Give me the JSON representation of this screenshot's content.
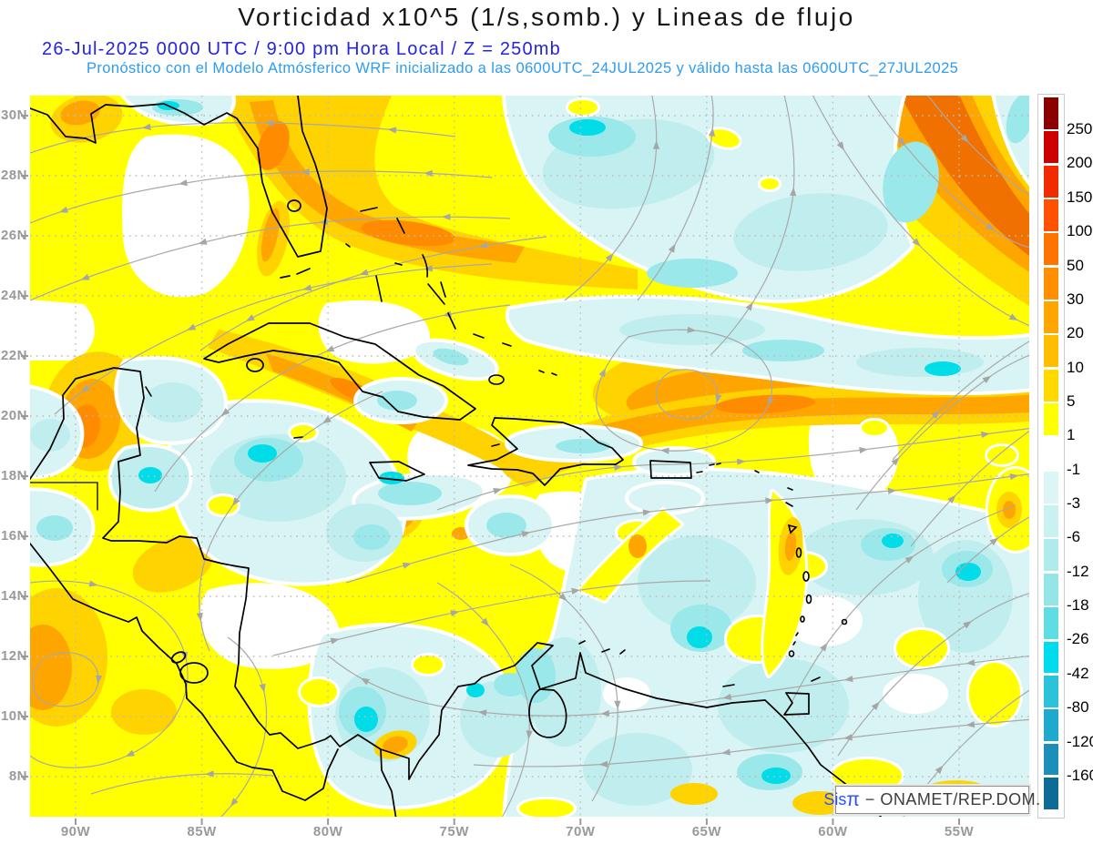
{
  "header": {
    "title": "Vorticidad x10^5 (1/s,somb.) y Lineas de flujo",
    "datetime_line": "26-Jul-2025   0000 UTC / 9:00 pm Hora Local / Z = 250mb",
    "forecast_line": "Pronóstico con el Modelo Atmósferico WRF inicializado a las 0600UTC_24JUL2025 y válido hasta las  0600UTC_27JUL2025"
  },
  "axes": {
    "lat_labels": [
      "30N",
      "28N",
      "26N",
      "24N",
      "22N",
      "20N",
      "18N",
      "16N",
      "14N",
      "12N",
      "10N",
      "8N"
    ],
    "lon_labels": [
      "90W",
      "85W",
      "80W",
      "75W",
      "70W",
      "65W",
      "60W",
      "55W"
    ]
  },
  "colorbar": {
    "tick_labels": [
      "250",
      "200",
      "150",
      "100",
      "50",
      "30",
      "20",
      "10",
      "5",
      "1",
      "-1",
      "-3",
      "-6",
      "-12",
      "-18",
      "-26",
      "-42",
      "-80",
      "-120",
      "-160"
    ],
    "colors": [
      "#8b0000",
      "#cd0000",
      "#f12a00",
      "#ff5200",
      "#ff7300",
      "#ff8e00",
      "#ffa500",
      "#ffbf00",
      "#ffd900",
      "#ffff00",
      "#ffffff",
      "#dcf5f5",
      "#c9f1f1",
      "#b0ebeb",
      "#93e5e6",
      "#5fdde2",
      "#00dcec",
      "#2cc3da",
      "#1fa9cc",
      "#1b8fba",
      "#0e6b95"
    ]
  },
  "watermark": {
    "brand_prefix": "Sis",
    "brand_symbol": "π",
    "rest": "− ONAMET/REP.DOM."
  },
  "colors": {
    "title_text": "#161616",
    "datetime_text": "#2424dd",
    "forecast_text": "#2d9cf2",
    "axis_label_text": "#9a9a9a",
    "streamline": "#a9a9a9",
    "coastline": "#000000",
    "shade_yellow": "#ffff00",
    "shade_gold": "#ffd300",
    "shade_orange": "#ffa500",
    "shade_deep_orange": "#ff8c00",
    "shade_pale_cyan": "#d9f4f4",
    "shade_light_cyan": "#c0eeee",
    "shade_mid_cyan": "#9ae8ea",
    "shade_vivid_cyan": "#00dce8"
  }
}
